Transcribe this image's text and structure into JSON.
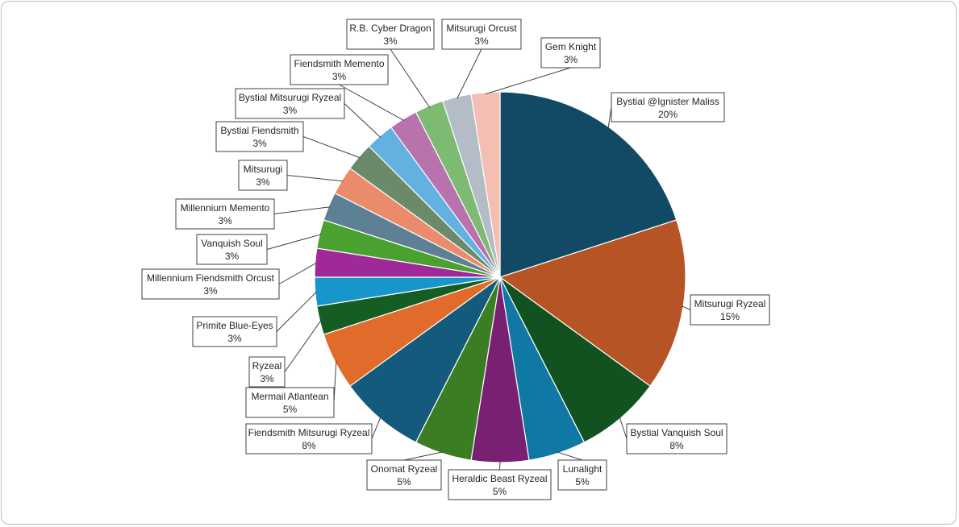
{
  "chart_data": {
    "type": "pie",
    "title": "",
    "slices": [
      {
        "name": "Bystial @Ignister Maliss",
        "value": 8,
        "percent_label": "20%",
        "color": "#124a66"
      },
      {
        "name": "Mitsurugi Ryzeal",
        "value": 6,
        "percent_label": "15%",
        "color": "#b65425"
      },
      {
        "name": "Bystial Vanquish Soul",
        "value": 3,
        "percent_label": "8%",
        "color": "#115220"
      },
      {
        "name": "Lunalight",
        "value": 2,
        "percent_label": "5%",
        "color": "#0f78a5"
      },
      {
        "name": "Heraldic Beast Ryzeal",
        "value": 2,
        "percent_label": "5%",
        "color": "#7a2072"
      },
      {
        "name": "Onomat Ryzeal",
        "value": 2,
        "percent_label": "5%",
        "color": "#3a7d23"
      },
      {
        "name": "Fiendsmith Mitsurugi Ryzeal",
        "value": 3,
        "percent_label": "8%",
        "color": "#145a7c"
      },
      {
        "name": "Mermail Atlantean",
        "value": 2,
        "percent_label": "5%",
        "color": "#e06b2a"
      },
      {
        "name": "Ryzeal",
        "value": 1,
        "percent_label": "3%",
        "color": "#165d24"
      },
      {
        "name": "Primite Blue-Eyes",
        "value": 1,
        "percent_label": "3%",
        "color": "#1796cc"
      },
      {
        "name": "Millennium Fiendsmith Orcust",
        "value": 1,
        "percent_label": "3%",
        "color": "#a0299a"
      },
      {
        "name": "Vanquish Soul",
        "value": 1,
        "percent_label": "3%",
        "color": "#4ba12f"
      },
      {
        "name": "Millennium Memento",
        "value": 1,
        "percent_label": "3%",
        "color": "#5e8094"
      },
      {
        "name": "Mitsurugi",
        "value": 1,
        "percent_label": "3%",
        "color": "#ea8c6c"
      },
      {
        "name": "Bystial Fiendsmith",
        "value": 1,
        "percent_label": "3%",
        "color": "#6a8a6a"
      },
      {
        "name": "Bystial Mitsurugi Ryzeal",
        "value": 1,
        "percent_label": "3%",
        "color": "#62b1e0"
      },
      {
        "name": "Fiendsmith Memento",
        "value": 1,
        "percent_label": "3%",
        "color": "#b873ae"
      },
      {
        "name": "R.B. Cyber Dragon",
        "value": 1,
        "percent_label": "3%",
        "color": "#7dba72"
      },
      {
        "name": "Mitsurugi Orcust",
        "value": 1,
        "percent_label": "3%",
        "color": "#b3bcc7"
      },
      {
        "name": "Gem Knight",
        "value": 1,
        "percent_label": "3%",
        "color": "#f4beb2"
      }
    ],
    "legend": "none",
    "data_labels": "category name and percentage in callout boxes"
  }
}
